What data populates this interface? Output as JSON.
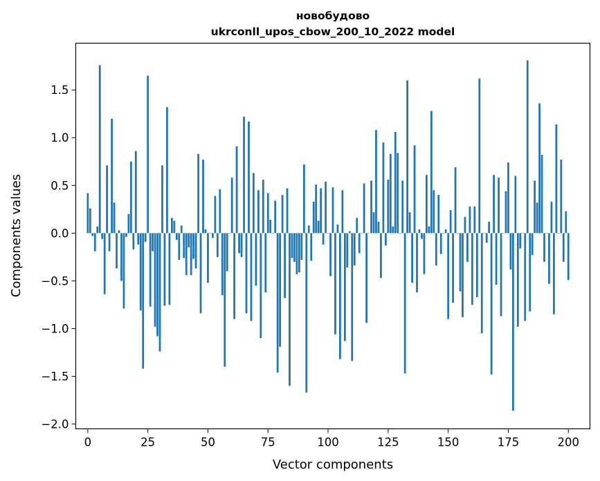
{
  "chart_data": {
    "type": "bar",
    "title": "новобудово",
    "subtitle": "ukrconll_upos_cbow_200_10_2022 model",
    "xlabel": "Vector components",
    "ylabel": "Components values",
    "xlim": [
      -5,
      209
    ],
    "ylim": [
      -2.05,
      1.99
    ],
    "xticks": [
      0,
      25,
      50,
      75,
      100,
      125,
      150,
      175,
      200
    ],
    "yticks": [
      -2.0,
      -1.5,
      -1.0,
      -0.5,
      0.0,
      0.5,
      1.0,
      1.5
    ],
    "ytick_labels": [
      "−2.0",
      "−1.5",
      "−1.0",
      "−0.5",
      "0.0",
      "0.5",
      "1.0",
      "1.5"
    ],
    "bar_color": "#1f77b4",
    "grid": false,
    "values": [
      0.42,
      0.26,
      -0.03,
      -0.19,
      0.07,
      1.76,
      -0.06,
      -0.64,
      0.71,
      -0.19,
      1.2,
      0.32,
      -0.37,
      0.03,
      -0.5,
      -0.79,
      -0.04,
      0.2,
      0.75,
      -0.17,
      0.86,
      -0.12,
      -0.81,
      -1.42,
      -0.09,
      1.65,
      -0.77,
      -0.19,
      -0.98,
      -1.08,
      -1.24,
      0.71,
      -0.76,
      1.32,
      -0.75,
      0.16,
      0.13,
      -0.07,
      -0.28,
      0.08,
      -0.26,
      -0.44,
      -0.15,
      -0.44,
      -0.27,
      -0.37,
      0.83,
      -0.84,
      0.77,
      0.04,
      -0.52,
      0.0,
      -0.05,
      0.39,
      -0.25,
      0.46,
      -0.65,
      -1.4,
      -0.4,
      0.0,
      0.58,
      -0.9,
      0.91,
      -0.21,
      -0.25,
      1.22,
      -0.84,
      1.17,
      -0.92,
      0.63,
      -0.55,
      0.45,
      -1.1,
      0.56,
      -0.62,
      0.42,
      0.14,
      0.0,
      0.34,
      -1.46,
      -1.19,
      0.4,
      -0.68,
      0.47,
      -1.6,
      -0.26,
      -0.3,
      -0.43,
      -0.41,
      -0.28,
      0.72,
      -1.67,
      0.08,
      -0.29,
      0.33,
      0.51,
      0.13,
      0.47,
      -0.12,
      0.54,
      0.0,
      -0.45,
      0.48,
      -1.06,
      0.09,
      -1.32,
      0.45,
      -1.13,
      -0.36,
      0.02,
      -1.34,
      -0.34,
      0.16,
      -0.21,
      0.0,
      0.52,
      -0.94,
      0.0,
      0.55,
      0.22,
      1.08,
      0.12,
      -0.47,
      0.95,
      -0.13,
      0.56,
      0.83,
      0.07,
      1.06,
      0.84,
      0.0,
      0.55,
      -1.47,
      1.6,
      0.22,
      -0.52,
      0.92,
      -0.62,
      0.04,
      -0.06,
      -0.43,
      0.61,
      0.07,
      1.28,
      0.45,
      -0.34,
      0.4,
      -0.22,
      0.0,
      0.04,
      -0.9,
      0.24,
      -0.73,
      0.69,
      0.0,
      -0.61,
      -0.88,
      0.17,
      -0.3,
      0.28,
      -0.75,
      0.28,
      -0.67,
      1.62,
      -1.05,
      0.0,
      -0.1,
      0.12,
      -1.48,
      0.61,
      -0.54,
      0.58,
      -0.87,
      0.0,
      0.44,
      0.74,
      -0.38,
      -1.86,
      0.6,
      -0.98,
      -0.16,
      0.0,
      -0.92,
      1.81,
      -0.82,
      -0.23,
      0.55,
      0.32,
      1.36,
      0.82,
      -0.3,
      0.0,
      -0.53,
      0.33,
      -0.85,
      1.14,
      0.0,
      0.77,
      -0.3,
      0.23,
      -0.49
    ]
  }
}
